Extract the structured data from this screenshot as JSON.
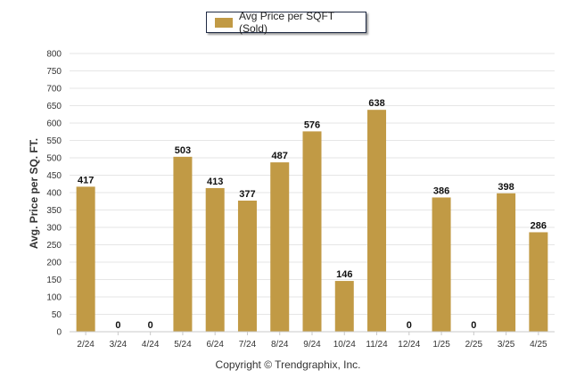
{
  "chart_data": {
    "type": "bar",
    "title": "",
    "xlabel": "",
    "ylabel": "Avg. Price per SQ. FT.",
    "ylim": [
      0,
      800
    ],
    "yticks": [
      "0",
      "50",
      "100",
      "150",
      "200",
      "250",
      "300",
      "350",
      "400",
      "450",
      "500",
      "550",
      "600",
      "650",
      "700",
      "750",
      "800"
    ],
    "grid": true,
    "legend_position": "top-center",
    "categories": [
      "2/24",
      "3/24",
      "4/24",
      "5/24",
      "6/24",
      "7/24",
      "8/24",
      "9/24",
      "10/24",
      "11/24",
      "12/24",
      "1/25",
      "2/25",
      "3/25",
      "4/25"
    ],
    "series": [
      {
        "name": "Avg Price per SQFT (Sold)",
        "color": "#c19a45",
        "values": [
          417,
          0,
          0,
          503,
          413,
          377,
          487,
          576,
          146,
          638,
          0,
          386,
          0,
          398,
          286
        ]
      }
    ]
  },
  "footer": {
    "copyright": "Copyright © Trendgraphix, Inc."
  }
}
